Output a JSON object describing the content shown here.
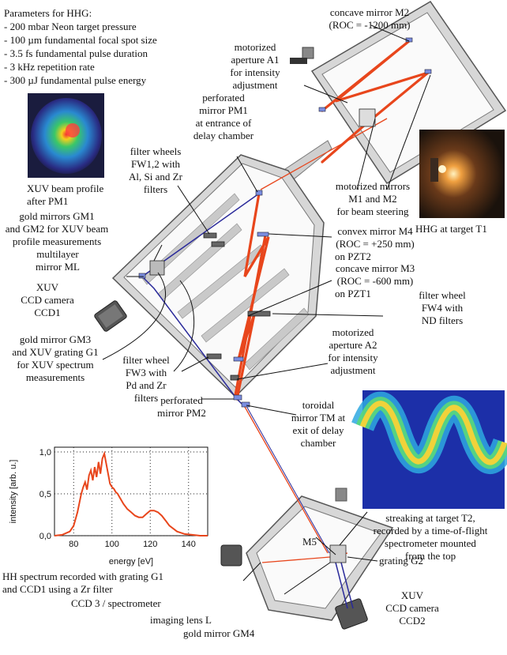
{
  "params": {
    "heading": "Parameters for HHG:",
    "items": [
      "- 200 mbar Neon target pressure",
      "- 100 µm fundamental focal spot size",
      "- 3.5 fs fundamental pulse duration",
      "- 3 kHz repetition rate",
      "- 300 µJ fundamental pulse energy"
    ]
  },
  "labels": {
    "m2_a": "concave mirror M2",
    "m2_b": "(ROC = -1200 mm)",
    "a1_a": "motorized",
    "a1_b": "aperture A1",
    "a1_c": "for intensity",
    "a1_d": "adjustment",
    "pm1_a": "perforated",
    "pm1_b": "mirror PM1",
    "pm1_c": "at entrance of",
    "pm1_d": "delay chamber",
    "xuv_prof_a": "XUV beam profile",
    "xuv_prof_b": "after PM1",
    "fw12_a": "filter wheels",
    "fw12_b": "FW1,2 with",
    "fw12_c": "Al, Si and Zr",
    "fw12_d": "filters",
    "mot_a": "motorized mirrors",
    "mot_b": "M1 and M2",
    "mot_c": "for beam steering",
    "gm12_a": "gold mirrors GM1",
    "gm12_b": "and GM2 for XUV beam",
    "gm12_c": "profile measurements",
    "hhg_t1": "HHG at target T1",
    "m4_a": "convex mirror M4",
    "m4_b": "(ROC = +250 mm)",
    "m4_c": "on PZT2",
    "ml_a": "multilayer",
    "ml_b": "mirror ML",
    "m3_a": "concave mirror M3",
    "m3_b": "(ROC = -600 mm)",
    "m3_c": "on PZT1",
    "ccd1_a": "XUV",
    "ccd1_b": "CCD camera",
    "ccd1_c": "CCD1",
    "fw4_a": "filter wheel",
    "fw4_b": "FW4 with",
    "fw4_c": "ND filters",
    "gm3_a": "gold mirror GM3",
    "gm3_b": "and XUV grating G1",
    "gm3_c": "for XUV spectrum",
    "gm3_d": "measurements",
    "a2_a": "motorized",
    "a2_b": "aperture A2",
    "a2_c": "for intensity",
    "a2_d": "adjustment",
    "fw3_a": "filter wheel",
    "fw3_b": "FW3 with",
    "fw3_c": "Pd and Zr",
    "fw3_d": "filters",
    "pm2_a": "perforated",
    "pm2_b": "mirror PM2",
    "tm_a": "toroidal",
    "tm_b": "mirror TM at",
    "tm_c": "exit of delay",
    "tm_d": "chamber",
    "streak_a": "streaking at target T2,",
    "streak_b": "recorded by a time-of-flight",
    "streak_c": "spectrometer mounted",
    "streak_d": "from the top",
    "hh_a": "HH spectrum recorded with grating G1",
    "hh_b": "and CCD1 using a Zr filter",
    "ccd3": "CCD 3 / spectrometer",
    "m5": "M5",
    "g2": "grating G2",
    "lensl": "imaging lens L",
    "gm4": "gold mirror GM4",
    "ccd2_a": "XUV",
    "ccd2_b": "CCD  camera",
    "ccd2_c": "CCD2"
  },
  "chart_data": {
    "type": "line",
    "xlabel": "energy [eV]",
    "ylabel": "intensity [arb. u.]",
    "xlim": [
      70,
      150
    ],
    "ylim": [
      0,
      1
    ],
    "xticks": [
      "80",
      "100",
      "120",
      "140"
    ],
    "yticks": [
      "0,0",
      "0,5",
      "1,0"
    ],
    "grid": true,
    "x": [
      70,
      74,
      78,
      80,
      82,
      84,
      85,
      86,
      87,
      88,
      89,
      90,
      91,
      92,
      93,
      94,
      95,
      96,
      97,
      98,
      99,
      100,
      101,
      102,
      103,
      104,
      106,
      108,
      110,
      112,
      114,
      116,
      118,
      120,
      122,
      124,
      126,
      128,
      130,
      134,
      138,
      142,
      146,
      150
    ],
    "y": [
      0.0,
      0.01,
      0.05,
      0.12,
      0.28,
      0.5,
      0.58,
      0.64,
      0.55,
      0.72,
      0.78,
      0.66,
      0.82,
      0.7,
      0.88,
      0.74,
      0.92,
      0.98,
      0.86,
      0.74,
      0.62,
      0.58,
      0.56,
      0.52,
      0.5,
      0.46,
      0.38,
      0.32,
      0.28,
      0.24,
      0.22,
      0.22,
      0.26,
      0.3,
      0.3,
      0.28,
      0.24,
      0.18,
      0.12,
      0.05,
      0.02,
      0.01,
      0.0,
      0.0
    ]
  }
}
